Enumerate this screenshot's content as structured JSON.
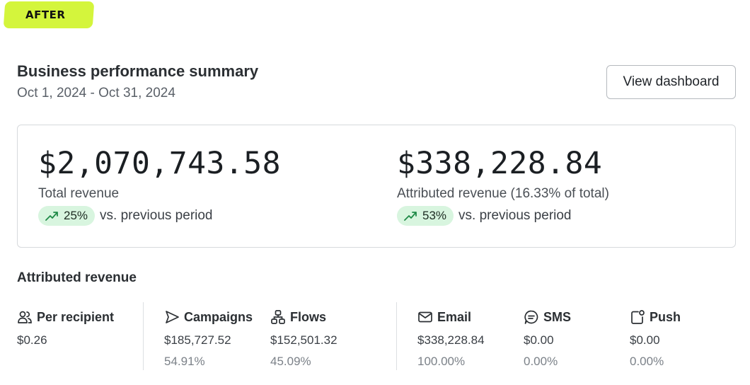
{
  "badge": {
    "label": "AFTER"
  },
  "header": {
    "title": "Business performance summary",
    "date_range": "Oct 1, 2024 - Oct 31, 2024",
    "view_dashboard_label": "View dashboard"
  },
  "summary": {
    "total": {
      "value": "$2,070,743.58",
      "label": "Total revenue",
      "change": "25%",
      "change_suffix": "vs. previous period"
    },
    "attributed": {
      "value": "$338,228.84",
      "label": "Attributed revenue (16.33% of total)",
      "change": "53%",
      "change_suffix": "vs. previous period"
    }
  },
  "attributed_section": {
    "title": "Attributed revenue",
    "columns": [
      {
        "icon": "people-icon",
        "label": "Per recipient",
        "value": "$0.26",
        "pct": ""
      },
      {
        "icon": "send-icon",
        "label": "Campaigns",
        "value": "$185,727.52",
        "pct": "54.91%"
      },
      {
        "icon": "flow-icon",
        "label": "Flows",
        "value": "$152,501.32",
        "pct": "45.09%"
      },
      {
        "icon": "mail-icon",
        "label": "Email",
        "value": "$338,228.84",
        "pct": "100.00%"
      },
      {
        "icon": "chat-icon",
        "label": "SMS",
        "value": "$0.00",
        "pct": "0.00%"
      },
      {
        "icon": "push-icon",
        "label": "Push",
        "value": "$0.00",
        "pct": "0.00%"
      }
    ]
  },
  "colors": {
    "badge_bg": "#d4f53c",
    "pill_bg": "#d8f5df",
    "trend_icon": "#1f8a47"
  }
}
